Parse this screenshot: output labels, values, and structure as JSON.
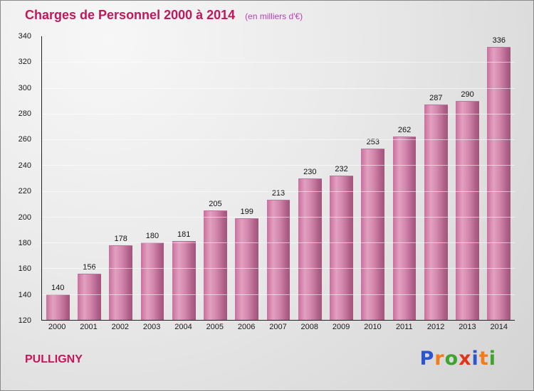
{
  "header": {
    "title": "Charges de Personnel 2000 à 2014",
    "subtitle": "(en milliers d'€)"
  },
  "footer": {
    "location": "PULLIGNY"
  },
  "logo": {
    "name": "Proxiti",
    "letters": [
      {
        "ch": "P",
        "color": "#2d55cc"
      },
      {
        "ch": "r",
        "color": "#f07d1a"
      },
      {
        "ch": "o",
        "color": "#3fa32e"
      },
      {
        "ch": "x",
        "color": "#e03517"
      },
      {
        "ch": "i",
        "color": "#2d55cc"
      },
      {
        "ch": "t",
        "color": "#f07d1a"
      },
      {
        "ch": "i",
        "color": "#3fa32e"
      }
    ]
  },
  "chart_data": {
    "type": "bar",
    "title": "Charges de Personnel 2000 à 2014",
    "subtitle": "(en milliers d'€)",
    "categories": [
      "2000",
      "2001",
      "2002",
      "2003",
      "2004",
      "2005",
      "2006",
      "2007",
      "2008",
      "2009",
      "2010",
      "2011",
      "2012",
      "2013",
      "2014"
    ],
    "values": [
      140,
      156,
      178,
      180,
      181,
      205,
      199,
      213,
      230,
      232,
      253,
      262,
      287,
      290,
      336
    ],
    "xlabel": "",
    "ylabel": "",
    "ylim": [
      120,
      340
    ],
    "ytick_step": 20,
    "bar_color": "#cf7ca6",
    "grid": true,
    "legend": false
  }
}
